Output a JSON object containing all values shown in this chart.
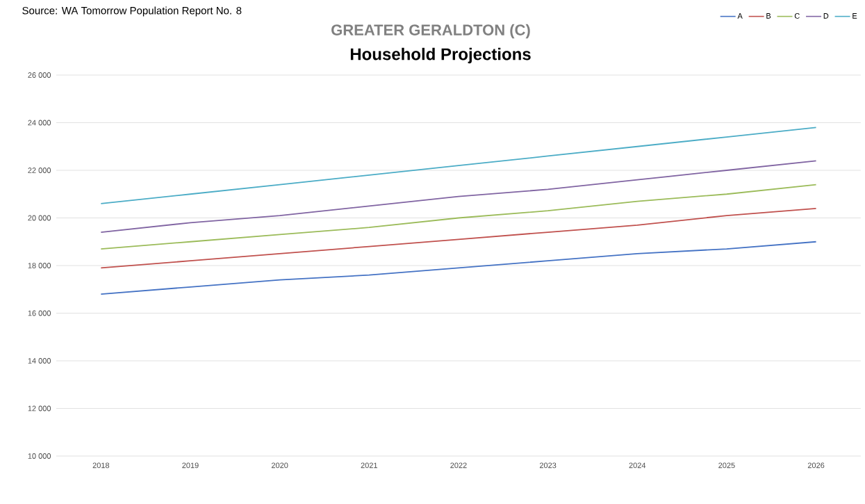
{
  "chart_data": {
    "type": "line",
    "title": "GREATER GERALDTON (C)",
    "subtitle": "Household Projections",
    "annotations": [
      "Source: WA Tomorrow Population Report No. 8"
    ],
    "categories": [
      "2018",
      "2019",
      "2020",
      "2021",
      "2022",
      "2023",
      "2024",
      "2025",
      "2026"
    ],
    "series": [
      {
        "name": "A",
        "color": "#4472c4",
        "values": [
          16800,
          17100,
          17400,
          17600,
          17900,
          18200,
          18500,
          18700,
          19000
        ]
      },
      {
        "name": "B",
        "color": "#c0504d",
        "values": [
          17900,
          18200,
          18500,
          18800,
          19100,
          19400,
          19700,
          20100,
          20400
        ]
      },
      {
        "name": "C",
        "color": "#9bbb59",
        "values": [
          18700,
          19000,
          19300,
          19600,
          20000,
          20300,
          20700,
          21000,
          21400
        ]
      },
      {
        "name": "D",
        "color": "#8064a2",
        "values": [
          19400,
          19800,
          20100,
          20500,
          20900,
          21200,
          21600,
          22000,
          22400
        ]
      },
      {
        "name": "E",
        "color": "#4bacc6",
        "values": [
          20600,
          21000,
          21400,
          21800,
          22200,
          22600,
          23000,
          23400,
          23800
        ]
      }
    ],
    "ylim": [
      10000,
      26000
    ],
    "yticks": [
      {
        "value": 10000,
        "label": "10 000"
      },
      {
        "value": 12000,
        "label": "12 000"
      },
      {
        "value": 14000,
        "label": "14 000"
      },
      {
        "value": 16000,
        "label": "16 000"
      },
      {
        "value": 18000,
        "label": "18 000"
      },
      {
        "value": 20000,
        "label": "20 000"
      },
      {
        "value": 22000,
        "label": "22 000"
      },
      {
        "value": 24000,
        "label": "24 000"
      },
      {
        "value": 26000,
        "label": "26 000"
      }
    ],
    "grid": "y",
    "legend": "top right",
    "marker": "none",
    "line_style": "solid"
  }
}
